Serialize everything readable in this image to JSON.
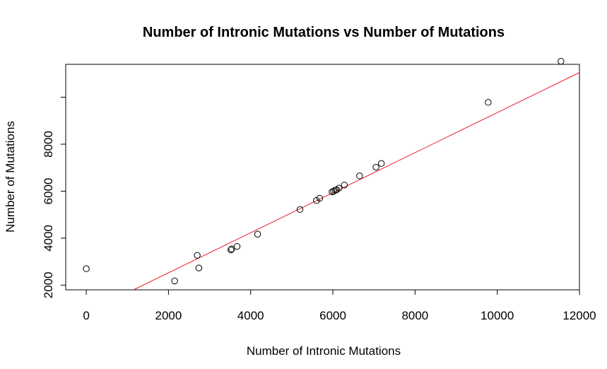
{
  "chart_data": {
    "type": "scatter",
    "title": "Number of Intronic Mutations vs Number of Mutations",
    "xlabel": "Number of Intronic Mutations",
    "ylabel": "Number of Mutations",
    "xlim": [
      -500,
      12000
    ],
    "ylim": [
      1800,
      11400
    ],
    "x_ticks": [
      0,
      2000,
      4000,
      6000,
      8000,
      10000,
      12000
    ],
    "x_tick_labels": [
      "0",
      "2000",
      "4000",
      "6000",
      "8000",
      "10000",
      "12000"
    ],
    "y_ticks": [
      2000,
      4000,
      6000,
      8000,
      10000
    ],
    "y_tick_labels": [
      "2000",
      "4000",
      "6000",
      "8000",
      ""
    ],
    "grid": false,
    "legend": "none",
    "points": [
      {
        "x": 0,
        "y": 2700
      },
      {
        "x": 2150,
        "y": 2180
      },
      {
        "x": 2700,
        "y": 3270
      },
      {
        "x": 2740,
        "y": 2730
      },
      {
        "x": 3520,
        "y": 3500
      },
      {
        "x": 3540,
        "y": 3540
      },
      {
        "x": 3670,
        "y": 3650
      },
      {
        "x": 4170,
        "y": 4170
      },
      {
        "x": 5200,
        "y": 5220
      },
      {
        "x": 5600,
        "y": 5600
      },
      {
        "x": 5680,
        "y": 5700
      },
      {
        "x": 5980,
        "y": 5970
      },
      {
        "x": 6020,
        "y": 6000
      },
      {
        "x": 6060,
        "y": 6040
      },
      {
        "x": 6090,
        "y": 6060
      },
      {
        "x": 6150,
        "y": 6130
      },
      {
        "x": 6280,
        "y": 6260
      },
      {
        "x": 6650,
        "y": 6650
      },
      {
        "x": 7050,
        "y": 7020
      },
      {
        "x": 7180,
        "y": 7180
      },
      {
        "x": 9780,
        "y": 9780
      },
      {
        "x": 11550,
        "y": 11530
      }
    ],
    "fit_line": {
      "color": "#e8202a",
      "x": [
        1150,
        12000
      ],
      "y": [
        1800,
        11050
      ]
    },
    "point_color": "#000000"
  }
}
